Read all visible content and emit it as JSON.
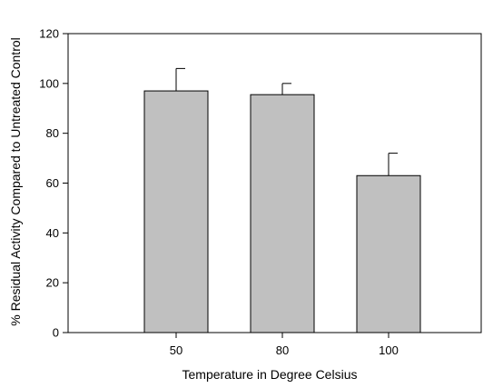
{
  "chart_data": {
    "type": "bar",
    "title": "",
    "xlabel": "Temperature in Degree Celsius",
    "ylabel": "% Residual Activity Compared to Untreated Control",
    "categories": [
      "50",
      "80",
      "100"
    ],
    "values": [
      97,
      95.5,
      63
    ],
    "error_upper": [
      106,
      100,
      72
    ],
    "ylim": [
      0,
      120
    ],
    "yticks": [
      0,
      20,
      40,
      60,
      80,
      100,
      120
    ],
    "grid": false,
    "legend": "none",
    "colors": {
      "bar_fill": "#c0c0c0",
      "bar_stroke": "#000000",
      "axis": "#000000"
    }
  }
}
